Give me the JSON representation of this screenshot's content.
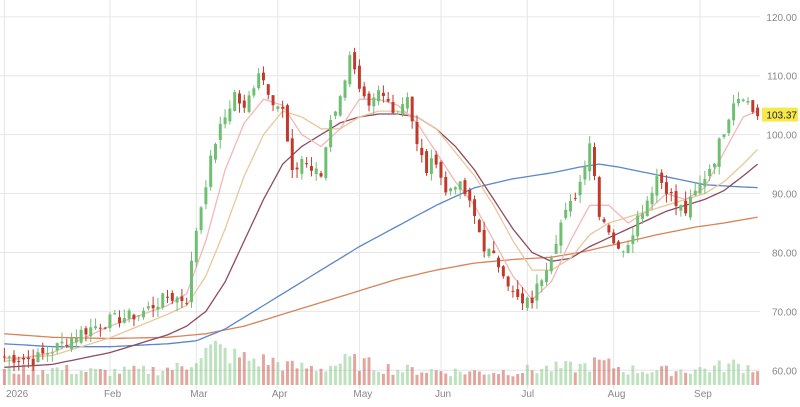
{
  "chart_data": {
    "type": "candlestick",
    "last_price_label": "103.37",
    "colors": {
      "up": "#6fbf73",
      "down": "#c0392b",
      "ma_fast": "#f4b6b6",
      "ma_mid": "#e8c79a",
      "ma_slow": "#8e4a5e",
      "ma_blue": "#5b86c9",
      "ma_long": "#d9825a",
      "grid": "#e6e6e6",
      "last_price_bg": "#f5e94b",
      "axis_text": "#888888"
    },
    "y_axis": {
      "position": "right",
      "ticks": [
        {
          "value": 60,
          "label": "60.00"
        },
        {
          "value": 70,
          "label": "70.00"
        },
        {
          "value": 80,
          "label": "80.00"
        },
        {
          "value": 90,
          "label": "90.00"
        },
        {
          "value": 100,
          "label": "100.00"
        },
        {
          "value": 110,
          "label": "110.00"
        },
        {
          "value": 120,
          "label": "120.00"
        }
      ],
      "ylim": [
        57.5,
        121.5
      ]
    },
    "x_axis": {
      "ticks": [
        {
          "index": 0,
          "label": "2026"
        },
        {
          "index": 22,
          "label": "Feb"
        },
        {
          "index": 40,
          "label": "Mar"
        },
        {
          "index": 57,
          "label": "Apr"
        },
        {
          "index": 74,
          "label": "May"
        },
        {
          "index": 91,
          "label": "Jun"
        },
        {
          "index": 109,
          "label": "Jul"
        },
        {
          "index": 127,
          "label": "Aug"
        },
        {
          "index": 145,
          "label": "Sep"
        }
      ],
      "count": 158
    },
    "grid": true,
    "anchors": {
      "close": [
        [
          0,
          62.3
        ],
        [
          6,
          61.8
        ],
        [
          10,
          63.5
        ],
        [
          16,
          66.5
        ],
        [
          22,
          68.5
        ],
        [
          28,
          69.5
        ],
        [
          34,
          72.5
        ],
        [
          38,
          72
        ],
        [
          40,
          84
        ],
        [
          42,
          92
        ],
        [
          44,
          99
        ],
        [
          46,
          103
        ],
        [
          48,
          107
        ],
        [
          50,
          104
        ],
        [
          53,
          111
        ],
        [
          56,
          106
        ],
        [
          58,
          104
        ],
        [
          60,
          93
        ],
        [
          62,
          96
        ],
        [
          64,
          94
        ],
        [
          66,
          93
        ],
        [
          68,
          103
        ],
        [
          70,
          106
        ],
        [
          72,
          114
        ],
        [
          74,
          107
        ],
        [
          76,
          104
        ],
        [
          78,
          107
        ],
        [
          82,
          104
        ],
        [
          84,
          107
        ],
        [
          86,
          98
        ],
        [
          88,
          94
        ],
        [
          90,
          96
        ],
        [
          92,
          90
        ],
        [
          94,
          92
        ],
        [
          96,
          90
        ],
        [
          98,
          86
        ],
        [
          100,
          81
        ],
        [
          102,
          79
        ],
        [
          104,
          77
        ],
        [
          106,
          73
        ],
        [
          108,
          71
        ],
        [
          110,
          72
        ],
        [
          112,
          76
        ],
        [
          114,
          80
        ],
        [
          116,
          85
        ],
        [
          118,
          88
        ],
        [
          120,
          92
        ],
        [
          122,
          99
        ],
        [
          124,
          87
        ],
        [
          126,
          84
        ],
        [
          128,
          80
        ],
        [
          130,
          82
        ],
        [
          132,
          86
        ],
        [
          134,
          89
        ],
        [
          136,
          93
        ],
        [
          138,
          91
        ],
        [
          140,
          88
        ],
        [
          142,
          87
        ],
        [
          144,
          90
        ],
        [
          146,
          93
        ],
        [
          148,
          96
        ],
        [
          150,
          101
        ],
        [
          152,
          106
        ],
        [
          154,
          107
        ],
        [
          156,
          104
        ],
        [
          157,
          103.4
        ]
      ],
      "ma_fast": [
        [
          0,
          61.5
        ],
        [
          10,
          63
        ],
        [
          22,
          67.5
        ],
        [
          34,
          71
        ],
        [
          38,
          73
        ],
        [
          42,
          82
        ],
        [
          46,
          94
        ],
        [
          50,
          102
        ],
        [
          54,
          106
        ],
        [
          58,
          105
        ],
        [
          62,
          100
        ],
        [
          66,
          98
        ],
        [
          70,
          101
        ],
        [
          74,
          106
        ],
        [
          78,
          106
        ],
        [
          82,
          105
        ],
        [
          86,
          102
        ],
        [
          90,
          97
        ],
        [
          94,
          92
        ],
        [
          98,
          88
        ],
        [
          102,
          82
        ],
        [
          106,
          76
        ],
        [
          110,
          72
        ],
        [
          114,
          75
        ],
        [
          118,
          82
        ],
        [
          122,
          88
        ],
        [
          126,
          88
        ],
        [
          130,
          85
        ],
        [
          134,
          87
        ],
        [
          138,
          90
        ],
        [
          142,
          89
        ],
        [
          146,
          91
        ],
        [
          150,
          97
        ],
        [
          154,
          103
        ],
        [
          157,
          104
        ]
      ],
      "ma_mid": [
        [
          0,
          62
        ],
        [
          10,
          62.5
        ],
        [
          22,
          65.5
        ],
        [
          34,
          69.5
        ],
        [
          38,
          71
        ],
        [
          42,
          76
        ],
        [
          46,
          84
        ],
        [
          50,
          93
        ],
        [
          54,
          100
        ],
        [
          58,
          104
        ],
        [
          62,
          103
        ],
        [
          66,
          101
        ],
        [
          70,
          101
        ],
        [
          74,
          103
        ],
        [
          78,
          104
        ],
        [
          82,
          104
        ],
        [
          86,
          103
        ],
        [
          90,
          101
        ],
        [
          94,
          97
        ],
        [
          98,
          93
        ],
        [
          102,
          88
        ],
        [
          106,
          82
        ],
        [
          110,
          77
        ],
        [
          114,
          77
        ],
        [
          118,
          79
        ],
        [
          122,
          83
        ],
        [
          126,
          85
        ],
        [
          130,
          86
        ],
        [
          134,
          87
        ],
        [
          138,
          88
        ],
        [
          142,
          89
        ],
        [
          146,
          90
        ],
        [
          150,
          92
        ],
        [
          154,
          95
        ],
        [
          157,
          97.5
        ]
      ],
      "ma_slow": [
        [
          0,
          60.5
        ],
        [
          10,
          61
        ],
        [
          22,
          63
        ],
        [
          34,
          66
        ],
        [
          38,
          67.5
        ],
        [
          42,
          70
        ],
        [
          46,
          75
        ],
        [
          50,
          82
        ],
        [
          54,
          89
        ],
        [
          58,
          95
        ],
        [
          62,
          98
        ],
        [
          66,
          100
        ],
        [
          70,
          102
        ],
        [
          74,
          103
        ],
        [
          78,
          103.5
        ],
        [
          82,
          103.5
        ],
        [
          86,
          103
        ],
        [
          90,
          101
        ],
        [
          94,
          98
        ],
        [
          98,
          94
        ],
        [
          102,
          89
        ],
        [
          106,
          84
        ],
        [
          110,
          80
        ],
        [
          114,
          78.5
        ],
        [
          118,
          79
        ],
        [
          122,
          81
        ],
        [
          126,
          82.5
        ],
        [
          130,
          84
        ],
        [
          134,
          85.5
        ],
        [
          138,
          87
        ],
        [
          142,
          88
        ],
        [
          146,
          89
        ],
        [
          150,
          90.5
        ],
        [
          154,
          93
        ],
        [
          157,
          95
        ]
      ],
      "ma_blue": [
        [
          0,
          64.5
        ],
        [
          10,
          64
        ],
        [
          22,
          64
        ],
        [
          34,
          64.5
        ],
        [
          40,
          65
        ],
        [
          46,
          67
        ],
        [
          52,
          70
        ],
        [
          58,
          73
        ],
        [
          66,
          77
        ],
        [
          74,
          81
        ],
        [
          82,
          84.5
        ],
        [
          90,
          88
        ],
        [
          98,
          91
        ],
        [
          106,
          92.5
        ],
        [
          114,
          93.5
        ],
        [
          120,
          94.5
        ],
        [
          124,
          95
        ],
        [
          128,
          94.5
        ],
        [
          134,
          93.5
        ],
        [
          140,
          92.5
        ],
        [
          146,
          91.5
        ],
        [
          152,
          91.2
        ],
        [
          157,
          91
        ]
      ],
      "ma_long": [
        [
          0,
          66.2
        ],
        [
          10,
          65.6
        ],
        [
          22,
          65.4
        ],
        [
          34,
          65.6
        ],
        [
          42,
          66.2
        ],
        [
          50,
          67.5
        ],
        [
          58,
          69.5
        ],
        [
          66,
          71.5
        ],
        [
          74,
          73.5
        ],
        [
          82,
          75.5
        ],
        [
          90,
          77
        ],
        [
          98,
          78.2
        ],
        [
          106,
          78.8
        ],
        [
          114,
          79.2
        ],
        [
          120,
          80
        ],
        [
          128,
          81.5
        ],
        [
          136,
          83
        ],
        [
          144,
          84.3
        ],
        [
          150,
          85
        ],
        [
          157,
          86
        ]
      ]
    },
    "volume": {
      "max": 100,
      "anchors": [
        [
          0,
          35
        ],
        [
          10,
          40
        ],
        [
          20,
          32
        ],
        [
          30,
          36
        ],
        [
          38,
          45
        ],
        [
          40,
          75
        ],
        [
          44,
          90
        ],
        [
          48,
          70
        ],
        [
          52,
          62
        ],
        [
          56,
          58
        ],
        [
          60,
          45
        ],
        [
          66,
          42
        ],
        [
          72,
          60
        ],
        [
          76,
          50
        ],
        [
          82,
          38
        ],
        [
          90,
          35
        ],
        [
          98,
          32
        ],
        [
          106,
          34
        ],
        [
          112,
          40
        ],
        [
          120,
          45
        ],
        [
          124,
          55
        ],
        [
          130,
          38
        ],
        [
          138,
          35
        ],
        [
          146,
          40
        ],
        [
          152,
          50
        ],
        [
          157,
          42
        ]
      ]
    }
  }
}
